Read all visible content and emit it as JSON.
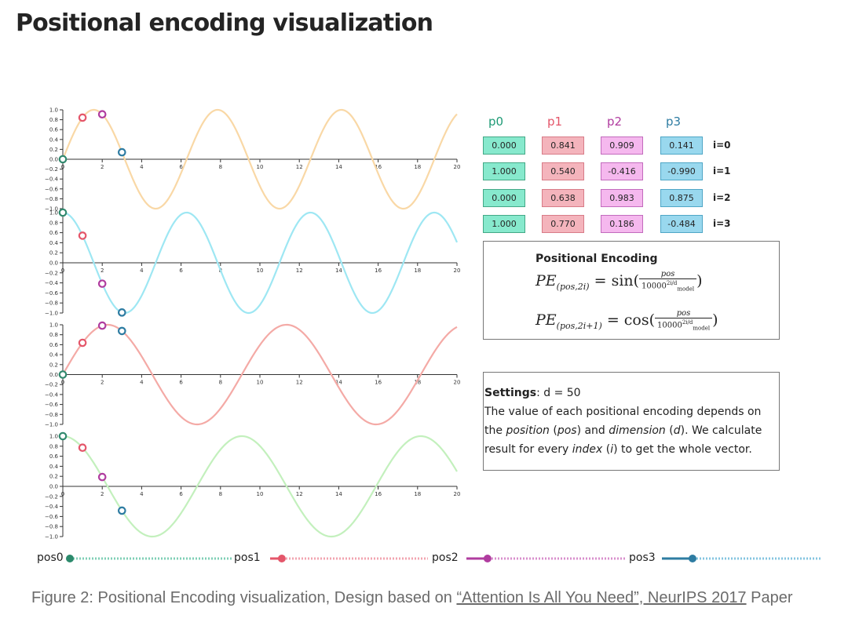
{
  "title": "Positional encoding visualization",
  "chart_data": {
    "type": "line",
    "title": "Positional encoding visualization",
    "d_model": 50,
    "x_range": [
      0,
      20
    ],
    "y_range": [
      -1.0,
      1.0
    ],
    "x_ticks": [
      0,
      2,
      4,
      6,
      8,
      10,
      12,
      14,
      16,
      18,
      20
    ],
    "x_tick_labels": [
      "0",
      "2",
      "4",
      "6",
      "8",
      "10",
      "12",
      "14",
      "16",
      "18",
      "20"
    ],
    "y_ticks": [
      1.0,
      0.8,
      0.6,
      0.4,
      0.2,
      0.0,
      -0.2,
      -0.4,
      -0.6,
      -0.8,
      -1.0
    ],
    "y_tick_labels": [
      "1.0",
      "0.8",
      "0.6",
      "0.4",
      "0.2",
      "0.0",
      "−0.2",
      "−0.4",
      "−0.6",
      "−0.8",
      "−1.0"
    ],
    "series": [
      {
        "name": "i=0",
        "function": "sin",
        "freq": 1.0,
        "color": "#f9d8a6"
      },
      {
        "name": "i=1",
        "function": "cos",
        "freq": 1.0,
        "color": "#9ee7f3"
      },
      {
        "name": "i=2",
        "function": "sin",
        "freq": 0.6918,
        "color": "#f4aaa6"
      },
      {
        "name": "i=3",
        "function": "cos",
        "freq": 0.6918,
        "color": "#c3f0bd"
      }
    ],
    "markers": [
      {
        "name": "pos0",
        "x": 0,
        "color": "#31896e"
      },
      {
        "name": "pos1",
        "x": 1,
        "color": "#e4566a"
      },
      {
        "name": "pos2",
        "x": 2,
        "color": "#b03c9f"
      },
      {
        "name": "pos3",
        "x": 3,
        "color": "#2e7ca2"
      }
    ]
  },
  "table": {
    "headers": [
      "p0",
      "p1",
      "p2",
      "p3"
    ],
    "header_colors": [
      "#1f9a76",
      "#e4566a",
      "#b03c9f",
      "#2e7ca2"
    ],
    "rows": [
      {
        "label": "i=0",
        "values": [
          "0.000",
          "0.841",
          "0.909",
          "0.141"
        ]
      },
      {
        "label": "i=1",
        "values": [
          "1.000",
          "0.540",
          "-0.416",
          "-0.990"
        ]
      },
      {
        "label": "i=2",
        "values": [
          "0.000",
          "0.638",
          "0.983",
          "0.875"
        ]
      },
      {
        "label": "i=3",
        "values": [
          "1.000",
          "0.770",
          "0.186",
          "-0.484"
        ]
      }
    ]
  },
  "formula": {
    "title": "Positional Encoding",
    "pe": "PE",
    "sub_sin": "(pos,2i)",
    "sub_cos": "(pos,2i+1)",
    "eq_sin": "= sin(",
    "eq_cos": "= cos(",
    "numerator": "pos",
    "denominator_base": "10000",
    "denominator_exp": "2i/d",
    "denominator_sub": "model",
    "close": ")"
  },
  "settings": {
    "label": "Settings",
    "d_text": ": d = 50",
    "t1": "The value of each positional encoding depends on the ",
    "position": "position",
    "t2": " (",
    "pos": "pos",
    "t3": ") and ",
    "dimension": "dimension",
    "t4": " (",
    "d": "d",
    "t5": "). We calculate result for every ",
    "index": "index",
    "t6": " (",
    "i": "i",
    "t7": ") to get the whole vector."
  },
  "sliders": [
    {
      "label": "pos0",
      "value": 0,
      "color": "#2c8a6c",
      "track": "#7fcfb6"
    },
    {
      "label": "pos1",
      "value": 1,
      "color": "#e4566a",
      "track": "#f2a4b0"
    },
    {
      "label": "pos2",
      "value": 2,
      "color": "#b03c9f",
      "track": "#d88fcc"
    },
    {
      "label": "pos3",
      "value": 3,
      "color": "#2e7ca2",
      "track": "#85c5e0"
    }
  ],
  "slider_range": [
    0,
    20
  ],
  "caption": {
    "prefix": "Figure 2: Positional Encoding visualization, Design based on ",
    "link": "“Attention Is All You Need”, NeurIPS 2017",
    "suffix": " Paper"
  }
}
